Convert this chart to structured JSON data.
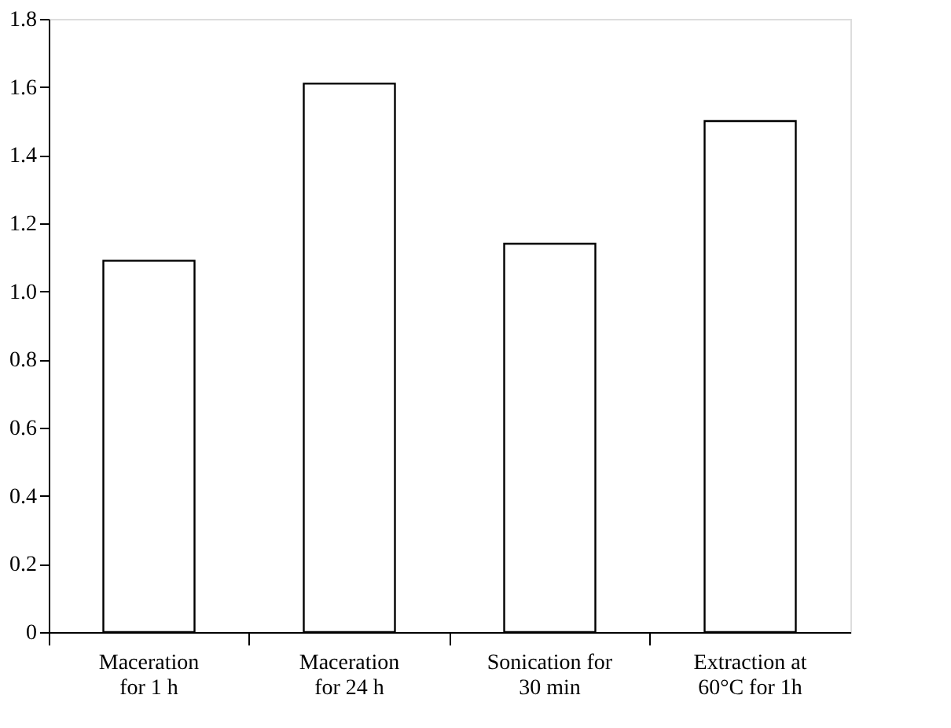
{
  "chart_data": {
    "type": "bar",
    "categories": [
      "Maceration\nfor 1 h",
      "Maceration\nfor 24 h",
      "Sonication for\n30 min",
      "Extraction at\n60°C for 1h"
    ],
    "values": [
      1.09,
      1.61,
      1.14,
      1.5
    ],
    "color": "#ffffff",
    "ylim": [
      0,
      1.8
    ],
    "yticks": [
      {
        "value": 0,
        "label": "0"
      },
      {
        "value": 0.2,
        "label": "0.2"
      },
      {
        "value": 0.4,
        "label": "0.4"
      },
      {
        "value": 0.6,
        "label": "0.6"
      },
      {
        "value": 0.8,
        "label": "0.8"
      },
      {
        "value": 1.0,
        "label": "1.0"
      },
      {
        "value": 1.2,
        "label": "1.2"
      },
      {
        "value": 1.4,
        "label": "1.4"
      },
      {
        "value": 1.6,
        "label": "1.6"
      },
      {
        "value": 1.8,
        "label": "1.8"
      }
    ],
    "grid": false
  }
}
